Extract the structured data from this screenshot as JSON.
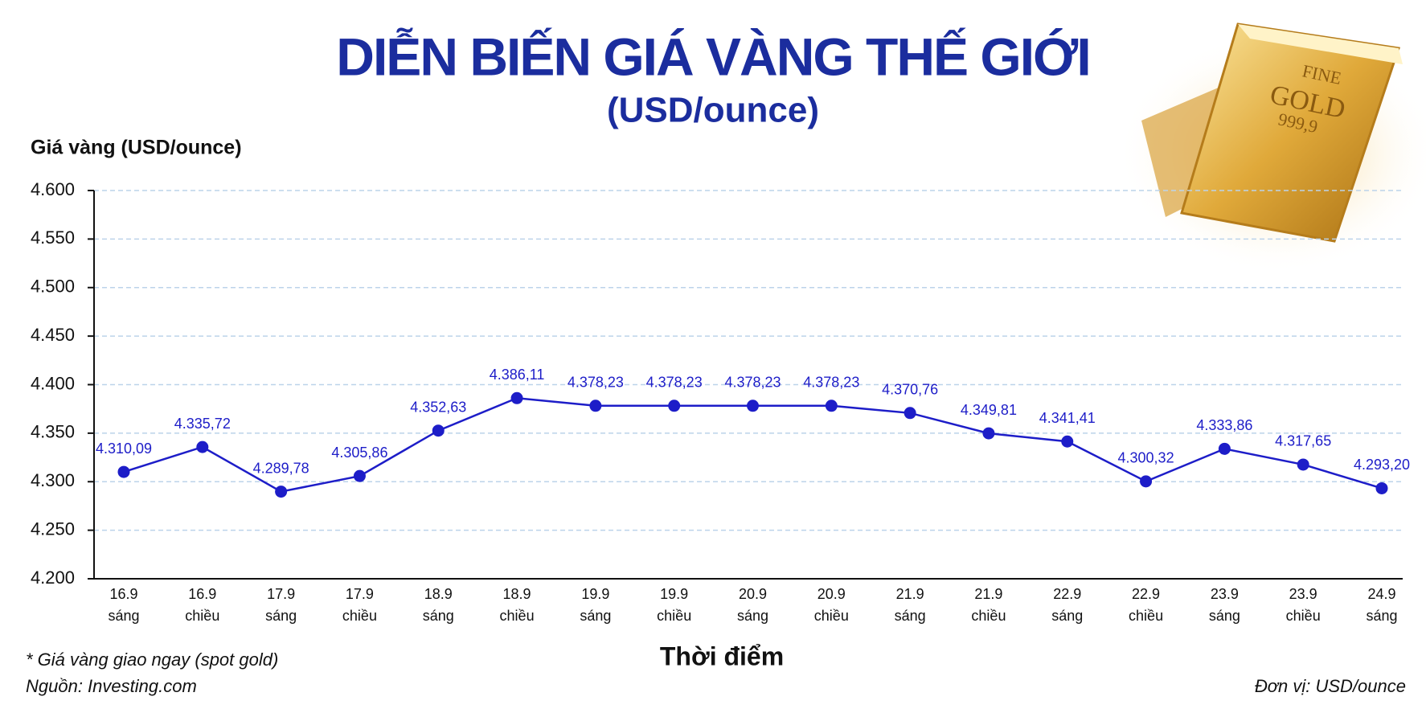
{
  "chart_data": {
    "type": "line",
    "title": "DIỄN BIẾN GIÁ VÀNG THẾ GIỚI",
    "subtitle": "(USD/ounce)",
    "y_label": "Giá vàng (USD/ounce)",
    "x_label": "Thời điểm",
    "note": "* Giá vàng giao ngay (spot gold)",
    "source": "Nguồn: Investing.com",
    "unit": "Đơn vị: USD/ounce",
    "categories": [
      [
        "16.9",
        "sáng"
      ],
      [
        "16.9",
        "chiều"
      ],
      [
        "17.9",
        "sáng"
      ],
      [
        "17.9",
        "chiều"
      ],
      [
        "18.9",
        "sáng"
      ],
      [
        "18.9",
        "chiều"
      ],
      [
        "19.9",
        "sáng"
      ],
      [
        "19.9",
        "chiều"
      ],
      [
        "20.9",
        "sáng"
      ],
      [
        "20.9",
        "chiều"
      ],
      [
        "21.9",
        "sáng"
      ],
      [
        "21.9",
        "chiều"
      ],
      [
        "22.9",
        "sáng"
      ],
      [
        "22.9",
        "chiều"
      ],
      [
        "23.9",
        "sáng"
      ],
      [
        "23.9",
        "chiều"
      ],
      [
        "24.9",
        "sáng"
      ]
    ],
    "values": [
      4310.09,
      4335.72,
      4289.78,
      4305.86,
      4352.63,
      4386.11,
      4378.23,
      4378.23,
      4378.23,
      4378.23,
      4370.76,
      4349.81,
      4341.41,
      4300.32,
      4333.86,
      4317.65,
      4293.2
    ],
    "value_labels": [
      "4.310,09",
      "4.335,72",
      "4.289,78",
      "4.305,86",
      "4.352,63",
      "4.386,11",
      "4.378,23",
      "4.378,23",
      "4.378,23",
      "4.378,23",
      "4.370,76",
      "4.349,81",
      "4.341,41",
      "4.300,32",
      "4.333,86",
      "4.317,65",
      "4.293,20"
    ],
    "color": "#1d1dc8",
    "ylim": [
      4200,
      4600
    ],
    "yticks": [
      {
        "value": 4200,
        "label": "4.200"
      },
      {
        "value": 4250,
        "label": "4.250"
      },
      {
        "value": 4300,
        "label": "4.300"
      },
      {
        "value": 4350,
        "label": "4.350"
      },
      {
        "value": 4400,
        "label": "4.400"
      },
      {
        "value": 4450,
        "label": "4.450"
      },
      {
        "value": 4500,
        "label": "4.500"
      },
      {
        "value": 4550,
        "label": "4.550"
      },
      {
        "value": 4600,
        "label": "4.600"
      }
    ],
    "grid": true
  }
}
